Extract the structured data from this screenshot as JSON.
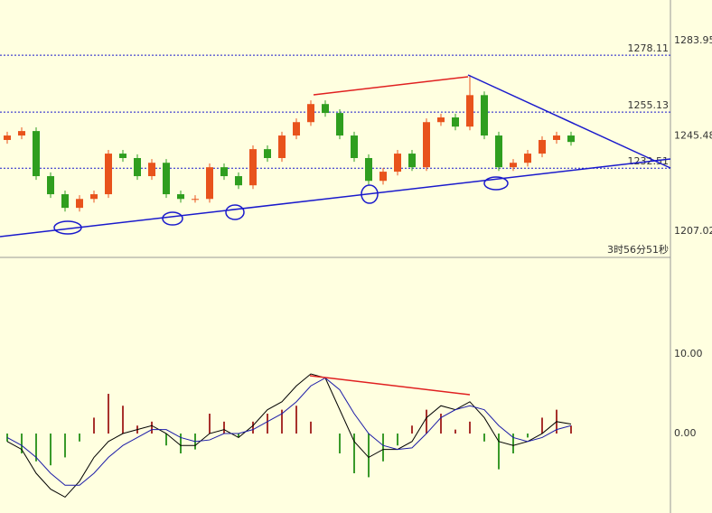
{
  "chart_data": [
    {
      "type": "candlestick",
      "open": [
        1243.9,
        1245.7,
        1247.5,
        1229.3,
        1222.0,
        1216.5,
        1220.1,
        1222.0,
        1238.4,
        1236.6,
        1229.3,
        1234.7,
        1222.0,
        1220.1,
        1220.1,
        1232.9,
        1229.3,
        1225.6,
        1240.2,
        1236.6,
        1245.7,
        1251.1,
        1258.4,
        1254.8,
        1245.7,
        1236.6,
        1227.4,
        1231.1,
        1238.4,
        1232.9,
        1251.1,
        1253.0,
        1249.3,
        1262.0,
        1245.7,
        1232.9,
        1234.7,
        1238.4,
        1243.9,
        1245.7
      ],
      "high": [
        1247.2,
        1249.0,
        1249.0,
        1230.8,
        1223.5,
        1221.6,
        1223.5,
        1239.9,
        1239.9,
        1238.1,
        1236.2,
        1236.2,
        1223.5,
        1221.6,
        1234.4,
        1234.4,
        1230.8,
        1241.7,
        1241.7,
        1247.2,
        1252.6,
        1259.9,
        1259.9,
        1256.3,
        1247.2,
        1238.1,
        1232.6,
        1239.9,
        1239.9,
        1252.6,
        1254.5,
        1254.5,
        1270.1,
        1263.5,
        1247.2,
        1236.2,
        1239.9,
        1245.4,
        1247.2,
        1247.2
      ],
      "low": [
        1242.4,
        1244.2,
        1227.8,
        1220.5,
        1215.0,
        1215.0,
        1218.6,
        1220.5,
        1235.1,
        1227.8,
        1227.8,
        1220.5,
        1218.6,
        1218.6,
        1218.6,
        1227.8,
        1224.1,
        1224.1,
        1235.1,
        1235.1,
        1244.2,
        1249.6,
        1253.3,
        1244.2,
        1235.1,
        1225.9,
        1225.9,
        1229.6,
        1231.4,
        1231.4,
        1249.6,
        1247.8,
        1247.8,
        1244.2,
        1231.4,
        1231.4,
        1233.2,
        1236.9,
        1242.4,
        1241.6
      ],
      "close": [
        1245.7,
        1247.5,
        1229.3,
        1222.0,
        1216.5,
        1220.1,
        1222.0,
        1238.4,
        1236.6,
        1229.3,
        1234.7,
        1222.0,
        1220.1,
        1220.1,
        1232.9,
        1229.3,
        1225.6,
        1240.2,
        1236.6,
        1245.7,
        1251.1,
        1258.4,
        1254.8,
        1245.7,
        1236.6,
        1227.4,
        1231.1,
        1238.4,
        1232.9,
        1251.1,
        1253.0,
        1249.3,
        1262.0,
        1245.7,
        1232.9,
        1234.7,
        1238.4,
        1243.9,
        1245.7,
        1243.1
      ],
      "up_color": "#e8531c",
      "down_color": "#2f9e1f",
      "ylim": [
        1196.5,
        1300.4
      ],
      "yticks": [
        1283.95,
        1245.48,
        1207.02
      ],
      "levels": [
        1278.11,
        1255.13,
        1232.51
      ],
      "level_color": "#1a1acc",
      "timer": "3时56分51秒"
    },
    {
      "type": "macd",
      "histogram": [
        -1,
        -2.5,
        -3.5,
        -4,
        -3,
        -1,
        2,
        5,
        3.5,
        1,
        1.5,
        -1.5,
        -2.5,
        -2,
        2.5,
        1.5,
        -0.5,
        1.5,
        2.5,
        3,
        3.5,
        1.5,
        0,
        -2.5,
        -5,
        -5.5,
        -3.5,
        -1.5,
        1,
        3,
        2.5,
        0.5,
        1.5,
        -1,
        -4.5,
        -2.5,
        -0.5,
        2,
        3,
        1
      ],
      "pos_color": "#a8322c",
      "neg_color": "#3a9a2a",
      "series": [
        {
          "color": "#000000",
          "values": [
            -1,
            -2,
            -5,
            -7,
            -8,
            -6,
            -3,
            -1,
            0,
            0.5,
            1,
            0,
            -1.5,
            -1.5,
            0,
            0.5,
            -0.5,
            1,
            3,
            4,
            6,
            7.5,
            7,
            3,
            -1,
            -3,
            -2,
            -2,
            -1,
            2,
            3.5,
            3,
            4,
            2,
            -1,
            -1.5,
            -1,
            0,
            1.5,
            1.2
          ]
        },
        {
          "color": "#1c1ca8",
          "values": [
            -0.5,
            -1.5,
            -3,
            -5,
            -6.5,
            -6.5,
            -5,
            -3,
            -1.5,
            -0.5,
            0.5,
            0.5,
            -0.5,
            -1,
            -0.8,
            0,
            0,
            0.5,
            1.5,
            2.5,
            4,
            6,
            7,
            5.5,
            2.5,
            0,
            -1.5,
            -2,
            -1.8,
            0,
            2,
            3,
            3.5,
            3,
            1,
            -0.5,
            -1,
            -0.5,
            0.5,
            1
          ]
        }
      ],
      "ylim": [
        -10,
        21.6
      ],
      "yticks": [
        {
          "value": 10,
          "label": "10.00"
        },
        {
          "value": 0,
          "label": "0.00"
        }
      ]
    }
  ]
}
